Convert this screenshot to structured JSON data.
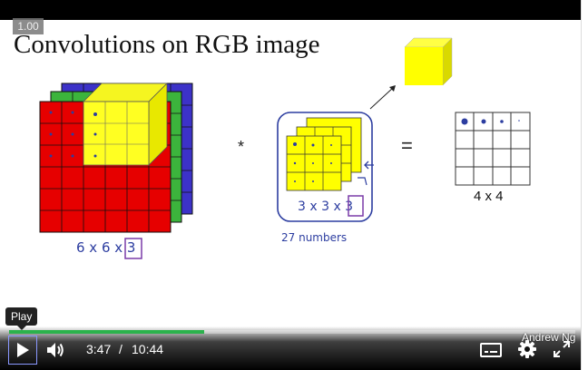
{
  "video": {
    "speed": "1.00",
    "author": "Andrew Ng",
    "progress": 0.345
  },
  "slide": {
    "title": "Convolutions on RGB image",
    "input_dims": "6 x 6 x 3",
    "filter_dims": "3 x 3 x 3",
    "filter_count_note": "27 numbers",
    "output_dims": "4 x 4",
    "operator_conv": "*",
    "operator_equals": "="
  },
  "controls": {
    "tooltip": "Play",
    "current_time": "3:47",
    "separator": "/",
    "duration": "10:44"
  },
  "colors": {
    "red": "#e60000",
    "green": "#3cb43c",
    "blue": "#3c32c8",
    "yellow": "#ffff00",
    "progress": "#2bb24c"
  },
  "icons": [
    "play-icon",
    "volume-icon",
    "captions-icon",
    "gear-icon",
    "fullscreen-icon"
  ]
}
